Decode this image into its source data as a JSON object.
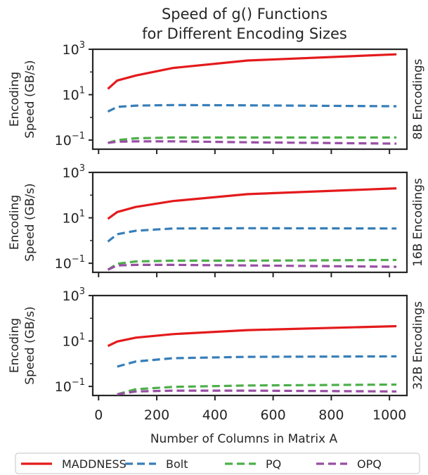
{
  "chart_data": {
    "type": "line",
    "title_lines": [
      "Speed of g() Functions",
      "for Different Encoding Sizes"
    ],
    "xlabel": "Number of Columns in Matrix A",
    "xlim": [
      -20,
      1060
    ],
    "xticks": [
      0,
      200,
      400,
      600,
      800,
      1000
    ],
    "yscale": "log",
    "ylim_exp": [
      -1.4,
      3
    ],
    "ytick_exps": [
      -1,
      1,
      3
    ],
    "ylabel_lines": [
      "Encoding",
      "Speed (GB/s)"
    ],
    "grid": false,
    "legend_position": "bottom",
    "x": [
      32,
      64,
      128,
      256,
      512,
      1024
    ],
    "colors": {
      "MADDNESS": "#e41a1c",
      "Bolt": "#377eb8",
      "PQ": "#4daf4a",
      "OPQ": "#984ea3"
    },
    "legend": [
      "MADDNESS",
      "Bolt",
      "PQ",
      "OPQ"
    ],
    "panels": [
      {
        "label": "8B Encodings",
        "series": [
          {
            "name": "MADDNESS",
            "values": [
              18,
              42,
              70,
              150,
              320,
              600
            ]
          },
          {
            "name": "Bolt",
            "values": [
              1.8,
              2.9,
              3.3,
              3.5,
              3.4,
              3.1
            ]
          },
          {
            "name": "PQ",
            "values": [
              0.075,
              0.1,
              0.12,
              0.13,
              0.13,
              0.13
            ]
          },
          {
            "name": "OPQ",
            "values": [
              0.075,
              0.085,
              0.088,
              0.088,
              0.08,
              0.07
            ]
          }
        ]
      },
      {
        "label": "16B Encodings",
        "series": [
          {
            "name": "MADDNESS",
            "values": [
              9,
              18,
              30,
              55,
              110,
              200
            ]
          },
          {
            "name": "Bolt",
            "values": [
              0.9,
              1.9,
              2.7,
              3.4,
              3.5,
              3.4
            ]
          },
          {
            "name": "PQ",
            "values": [
              0.052,
              0.095,
              0.12,
              0.13,
              0.13,
              0.14
            ]
          },
          {
            "name": "OPQ",
            "values": [
              0.052,
              0.08,
              0.085,
              0.085,
              0.08,
              0.07
            ]
          }
        ]
      },
      {
        "label": "32B Encodings",
        "series": [
          {
            "name": "MADDNESS",
            "values": [
              6,
              9.5,
              14,
              20,
              30,
              45
            ]
          },
          {
            "name": "Bolt",
            "values": [
              null,
              0.75,
              1.25,
              1.75,
              2.0,
              2.1
            ]
          },
          {
            "name": "PQ",
            "values": [
              null,
              0.045,
              0.075,
              0.095,
              0.11,
              0.12
            ]
          },
          {
            "name": "OPQ",
            "values": [
              null,
              0.045,
              0.06,
              0.065,
              0.065,
              0.06
            ]
          }
        ]
      }
    ]
  }
}
